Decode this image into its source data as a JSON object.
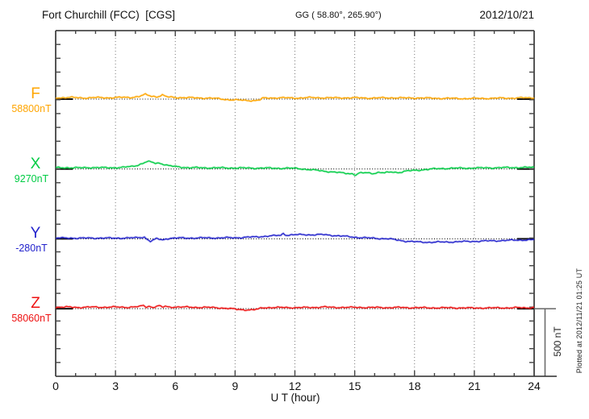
{
  "header": {
    "station": "Fort Churchill (FCC)  [CGS]",
    "coords": "GG ( 58.80°, 265.90°)",
    "date": "2012/10/21"
  },
  "x_axis": {
    "label": "U T (hour)",
    "ticks": [
      0,
      3,
      6,
      9,
      12,
      15,
      18,
      21,
      24
    ],
    "minor_step_hours": 1,
    "gridline_hours": [
      3,
      6,
      9,
      12,
      15,
      18,
      21
    ]
  },
  "scale_bar": {
    "label": "500 nT",
    "nT": 500
  },
  "footer_note": "Plotted at 2012/11/21 01:25 UT",
  "colors": {
    "axis": "#2a2a2a",
    "tick": "#444444",
    "gridline": "#777777",
    "baseline": "#111111",
    "scalebar": "#666666"
  },
  "chart_data": {
    "type": "line",
    "title": "Fort Churchill (FCC) magnetogram 2012/10/21",
    "xlabel": "U T (hour)",
    "x_range": [
      0,
      24
    ],
    "grid": "vertical dotted lines every 3 hours; dotted horizontal baseline per component",
    "division_nT": 500,
    "note": "points are [UT hour, offset in nT from component baseline]",
    "series": [
      {
        "name": "F",
        "baseline_label": "58800nT",
        "baseline_nT": 58800,
        "color": "#FFA500",
        "points": [
          [
            0,
            10
          ],
          [
            0.7,
            12
          ],
          [
            1.4,
            9
          ],
          [
            2,
            11
          ],
          [
            2.6,
            10
          ],
          [
            3.2,
            12
          ],
          [
            3.8,
            13
          ],
          [
            4.2,
            20
          ],
          [
            4.5,
            34
          ],
          [
            4.8,
            22
          ],
          [
            5.1,
            18
          ],
          [
            5.35,
            30
          ],
          [
            5.6,
            16
          ],
          [
            6,
            12
          ],
          [
            6.5,
            11
          ],
          [
            7,
            9
          ],
          [
            7.6,
            8
          ],
          [
            8.1,
            4
          ],
          [
            8.5,
            -2
          ],
          [
            9,
            -7
          ],
          [
            9.5,
            -9
          ],
          [
            10,
            -11
          ],
          [
            10.25,
            -6
          ],
          [
            10.4,
            7
          ],
          [
            10.8,
            9
          ],
          [
            11.3,
            10
          ],
          [
            11.8,
            8
          ],
          [
            12.3,
            9
          ],
          [
            12.8,
            11
          ],
          [
            13.4,
            10
          ],
          [
            14,
            9
          ],
          [
            14.6,
            10
          ],
          [
            15.2,
            9
          ],
          [
            15.8,
            8
          ],
          [
            16.4,
            9
          ],
          [
            17,
            10
          ],
          [
            17.6,
            8
          ],
          [
            18.2,
            9
          ],
          [
            18.8,
            7
          ],
          [
            19.4,
            6
          ],
          [
            20,
            5
          ],
          [
            20.6,
            4
          ],
          [
            21.2,
            5
          ],
          [
            21.8,
            6
          ],
          [
            22.4,
            7
          ],
          [
            23,
            8
          ],
          [
            23.5,
            9
          ],
          [
            24,
            10
          ]
        ]
      },
      {
        "name": "X",
        "baseline_label": "9270nT",
        "baseline_nT": 9270,
        "color": "#00CC44",
        "points": [
          [
            0,
            9
          ],
          [
            0.6,
            10
          ],
          [
            1.2,
            8
          ],
          [
            1.8,
            11
          ],
          [
            2.4,
            9
          ],
          [
            3,
            10
          ],
          [
            3.4,
            12
          ],
          [
            3.8,
            18
          ],
          [
            4.1,
            28
          ],
          [
            4.4,
            44
          ],
          [
            4.6,
            55
          ],
          [
            4.8,
            50
          ],
          [
            5,
            42
          ],
          [
            5.2,
            44
          ],
          [
            5.45,
            34
          ],
          [
            5.7,
            24
          ],
          [
            6,
            17
          ],
          [
            6.4,
            12
          ],
          [
            6.8,
            10
          ],
          [
            7.4,
            8
          ],
          [
            8,
            9
          ],
          [
            8.6,
            7
          ],
          [
            9.2,
            8
          ],
          [
            9.8,
            6
          ],
          [
            10.4,
            7
          ],
          [
            11,
            5
          ],
          [
            11.6,
            6
          ],
          [
            12.2,
            3
          ],
          [
            12.6,
            -3
          ],
          [
            13,
            -9
          ],
          [
            13.5,
            -16
          ],
          [
            14,
            -24
          ],
          [
            14.5,
            -31
          ],
          [
            14.9,
            -35
          ],
          [
            15.05,
            -45
          ],
          [
            15.2,
            -32
          ],
          [
            15.6,
            -28
          ],
          [
            15.9,
            -33
          ],
          [
            16.2,
            -25
          ],
          [
            16.5,
            -29
          ],
          [
            16.9,
            -22
          ],
          [
            17.2,
            -26
          ],
          [
            17.6,
            -15
          ],
          [
            18,
            -11
          ],
          [
            18.4,
            -6
          ],
          [
            18.8,
            -1
          ],
          [
            19.3,
            3
          ],
          [
            19.8,
            5
          ],
          [
            20.4,
            6
          ],
          [
            21,
            7
          ],
          [
            21.6,
            8
          ],
          [
            22.2,
            9
          ],
          [
            22.8,
            10
          ],
          [
            23.4,
            11
          ],
          [
            24,
            12
          ]
        ]
      },
      {
        "name": "Y",
        "baseline_label": "-280nT",
        "baseline_nT": -280,
        "color": "#2222CC",
        "points": [
          [
            0,
            5
          ],
          [
            0.7,
            6
          ],
          [
            1.4,
            5
          ],
          [
            2.1,
            6
          ],
          [
            2.8,
            5
          ],
          [
            3.4,
            6
          ],
          [
            4,
            7
          ],
          [
            4.25,
            11
          ],
          [
            4.45,
            13
          ],
          [
            4.6,
            -4
          ],
          [
            4.75,
            -18
          ],
          [
            4.9,
            -12
          ],
          [
            5.05,
            2
          ],
          [
            5.2,
            -3
          ],
          [
            5.35,
            -9
          ],
          [
            5.55,
            1
          ],
          [
            5.8,
            5
          ],
          [
            6.4,
            6
          ],
          [
            7,
            6
          ],
          [
            7.6,
            7
          ],
          [
            8.2,
            7
          ],
          [
            8.8,
            8
          ],
          [
            9.4,
            10
          ],
          [
            10,
            14
          ],
          [
            10.5,
            19
          ],
          [
            11,
            23
          ],
          [
            11.3,
            27
          ],
          [
            11.42,
            40
          ],
          [
            11.55,
            28
          ],
          [
            11.9,
            29
          ],
          [
            12.4,
            31
          ],
          [
            12.9,
            30
          ],
          [
            13.4,
            31
          ],
          [
            13.8,
            27
          ],
          [
            14.2,
            22
          ],
          [
            14.7,
            16
          ],
          [
            15.2,
            10
          ],
          [
            15.7,
            6
          ],
          [
            16.2,
            3
          ],
          [
            16.7,
            0
          ],
          [
            17.1,
            -8
          ],
          [
            17.5,
            -16
          ],
          [
            17.9,
            -21
          ],
          [
            18.3,
            -24
          ],
          [
            18.8,
            -25
          ],
          [
            19.3,
            -24
          ],
          [
            19.8,
            -23
          ],
          [
            20.3,
            -21
          ],
          [
            20.8,
            -19
          ],
          [
            21.3,
            -17
          ],
          [
            21.8,
            -15
          ],
          [
            22.3,
            -13
          ],
          [
            22.8,
            -11
          ],
          [
            23.3,
            -9
          ],
          [
            23.6,
            -8
          ],
          [
            24,
            -7
          ]
        ]
      },
      {
        "name": "Z",
        "baseline_label": "58060nT",
        "baseline_nT": 58060,
        "color": "#EE1111",
        "points": [
          [
            0,
            10
          ],
          [
            0.6,
            12
          ],
          [
            1.2,
            10
          ],
          [
            1.8,
            12
          ],
          [
            2.4,
            11
          ],
          [
            3,
            12
          ],
          [
            3.6,
            11
          ],
          [
            4,
            13
          ],
          [
            4.2,
            15
          ],
          [
            4.4,
            24
          ],
          [
            4.55,
            13
          ],
          [
            4.7,
            19
          ],
          [
            4.85,
            10
          ],
          [
            5,
            15
          ],
          [
            5.2,
            21
          ],
          [
            5.35,
            11
          ],
          [
            5.5,
            17
          ],
          [
            5.7,
            12
          ],
          [
            6,
            13
          ],
          [
            6.6,
            11
          ],
          [
            7.2,
            10
          ],
          [
            7.8,
            9
          ],
          [
            8.3,
            6
          ],
          [
            8.7,
            1
          ],
          [
            9.1,
            -5
          ],
          [
            9.5,
            -8
          ],
          [
            9.9,
            -9
          ],
          [
            10.15,
            -4
          ],
          [
            10.35,
            7
          ],
          [
            10.7,
            9
          ],
          [
            11.2,
            8
          ],
          [
            11.7,
            9
          ],
          [
            12.2,
            8
          ],
          [
            12.7,
            9
          ],
          [
            13.2,
            11
          ],
          [
            13.5,
            13
          ],
          [
            13.8,
            10
          ],
          [
            14.3,
            10
          ],
          [
            14.8,
            9
          ],
          [
            15.3,
            10
          ],
          [
            15.8,
            8
          ],
          [
            16.3,
            9
          ],
          [
            16.8,
            8
          ],
          [
            17.3,
            9
          ],
          [
            17.8,
            8
          ],
          [
            18.3,
            7
          ],
          [
            18.8,
            7
          ],
          [
            19.3,
            6
          ],
          [
            19.8,
            7
          ],
          [
            20.3,
            6
          ],
          [
            20.8,
            5
          ],
          [
            21.3,
            6
          ],
          [
            21.8,
            5
          ],
          [
            22.3,
            7
          ],
          [
            22.8,
            6
          ],
          [
            23.3,
            8
          ],
          [
            23.6,
            7
          ],
          [
            24,
            9
          ]
        ]
      }
    ]
  }
}
